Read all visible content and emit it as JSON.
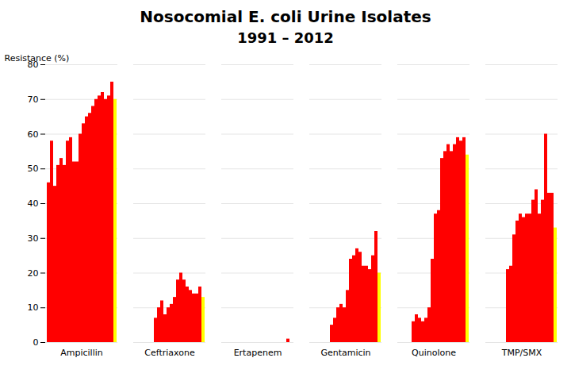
{
  "chart_data": {
    "type": "bar",
    "title": "Nosocomial E. coli Urine Isolates",
    "subtitle": "1991 – 2012",
    "categories": [
      "Ampicillin",
      "Ceftriaxone",
      "Ertapenem",
      "Gentamicin",
      "Quinolone",
      "TMP/SMX"
    ],
    "series": [
      {
        "color": "#ff0000",
        "values": [
          46,
          0,
          0,
          0,
          0,
          0
        ]
      },
      {
        "color": "#ff0000",
        "values": [
          58,
          0,
          0,
          0,
          0,
          0
        ]
      },
      {
        "color": "#ff0000",
        "values": [
          45,
          0,
          0,
          0,
          0,
          0
        ]
      },
      {
        "color": "#ff0000",
        "values": [
          51,
          0,
          0,
          0,
          0,
          0
        ]
      },
      {
        "color": "#ff0000",
        "values": [
          53,
          0,
          0,
          0,
          6,
          0
        ]
      },
      {
        "color": "#ff0000",
        "values": [
          51,
          0,
          0,
          0,
          8,
          0
        ]
      },
      {
        "color": "#ff0000",
        "values": [
          58,
          7,
          0,
          5,
          7,
          21
        ]
      },
      {
        "color": "#ff0000",
        "values": [
          59,
          10,
          0,
          7,
          6,
          22
        ]
      },
      {
        "color": "#ff0000",
        "values": [
          52,
          12,
          0,
          10,
          7,
          31
        ]
      },
      {
        "color": "#ff0000",
        "values": [
          52,
          8,
          0,
          11,
          10,
          35
        ]
      },
      {
        "color": "#ff0000",
        "values": [
          60,
          10,
          0,
          10,
          24,
          37
        ]
      },
      {
        "color": "#ff0000",
        "values": [
          63,
          11,
          0,
          15,
          37,
          36
        ]
      },
      {
        "color": "#ff0000",
        "values": [
          65,
          13,
          0,
          24,
          38,
          37
        ]
      },
      {
        "color": "#ff0000",
        "values": [
          66,
          18,
          0,
          25,
          53,
          37
        ]
      },
      {
        "color": "#ff0000",
        "values": [
          68,
          20,
          0,
          27,
          55,
          41
        ]
      },
      {
        "color": "#ff0000",
        "values": [
          70,
          18,
          0,
          26,
          57,
          44
        ]
      },
      {
        "color": "#ff0000",
        "values": [
          71,
          16,
          0,
          22,
          55,
          37
        ]
      },
      {
        "color": "#ff0000",
        "values": [
          72,
          15,
          0,
          22,
          57,
          41
        ]
      },
      {
        "color": "#ff0000",
        "values": [
          70,
          14,
          0,
          21,
          59,
          60
        ]
      },
      {
        "color": "#ff0000",
        "values": [
          71,
          14,
          0,
          25,
          58,
          43
        ]
      },
      {
        "color": "#ff0000",
        "values": [
          75,
          16,
          1,
          32,
          59,
          43
        ]
      },
      {
        "color": "#ffff00",
        "values": [
          70,
          13,
          0,
          20,
          54,
          33
        ]
      }
    ],
    "ylabel": "Resistance (%)",
    "ylim": [
      0,
      80
    ],
    "yticks": [
      0,
      10,
      20,
      30,
      40,
      50,
      60,
      70,
      80
    ],
    "grid": true
  }
}
